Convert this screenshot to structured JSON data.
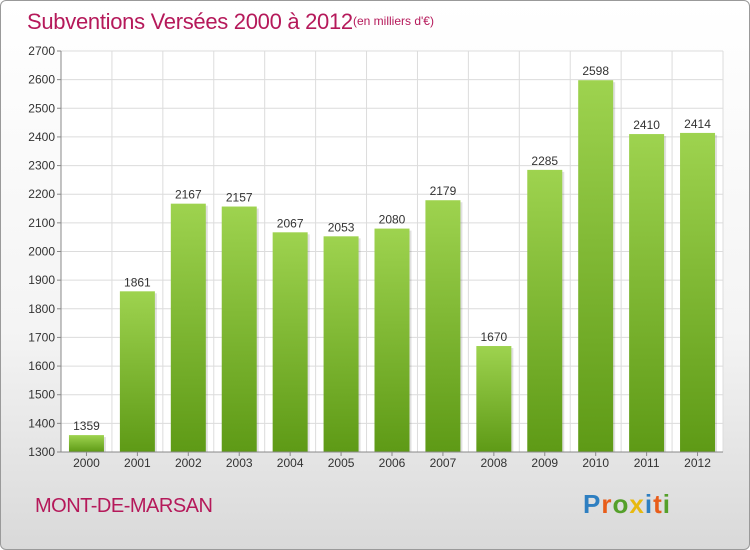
{
  "header": {
    "title": "Subventions Versées 2000 à 2012",
    "unit": "(en milliers d'€)"
  },
  "footer": {
    "city": "MONT-DE-MARSAN",
    "brand_letters": [
      "P",
      "r",
      "o",
      "x",
      "i",
      "t",
      "i"
    ],
    "brand_colors": [
      "#2e7fc1",
      "#e85d1a",
      "#55a02a",
      "#e8b90f",
      "#2e7fc1",
      "#e85d1a",
      "#55a02a"
    ]
  },
  "colors": {
    "bar_top": "#9ed34f",
    "bar_bottom": "#5e9a16",
    "grid": "#dcdcdc",
    "axis": "#888888"
  },
  "chart_data": {
    "type": "bar",
    "categories": [
      "2000",
      "2001",
      "2002",
      "2003",
      "2004",
      "2005",
      "2006",
      "2007",
      "2008",
      "2009",
      "2010",
      "2011",
      "2012"
    ],
    "values": [
      1359,
      1861,
      2167,
      2157,
      2067,
      2053,
      2080,
      2179,
      1670,
      2285,
      2598,
      2410,
      2414
    ],
    "title": "Subventions Versées 2000 à 2012",
    "ylabel": "(en milliers d'€)",
    "ylim": [
      1300,
      2700
    ],
    "yticks": [
      1300,
      1400,
      1500,
      1600,
      1700,
      1800,
      1900,
      2000,
      2100,
      2200,
      2300,
      2400,
      2500,
      2600,
      2700
    ],
    "grid": true,
    "legend": "none"
  }
}
